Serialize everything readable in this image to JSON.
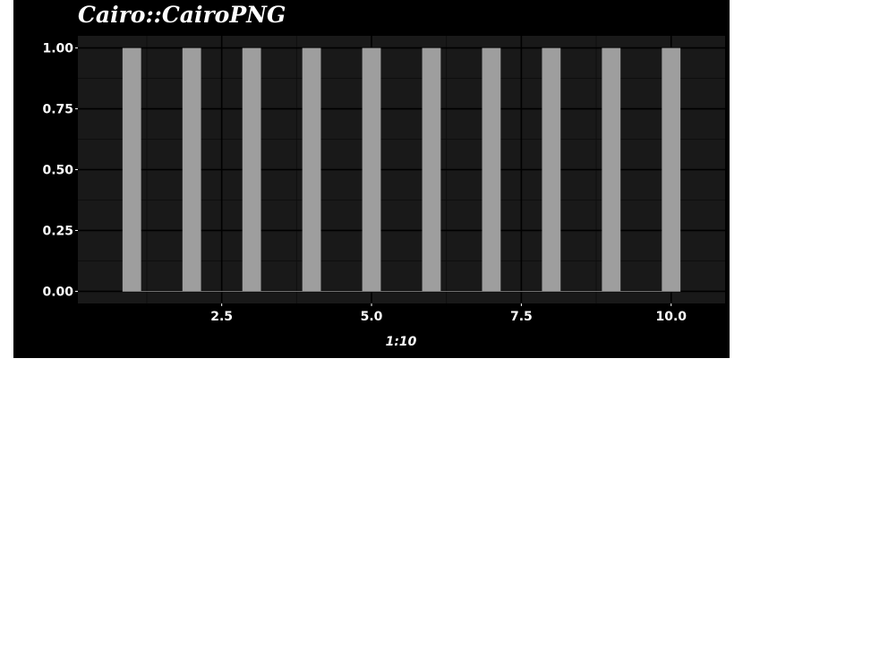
{
  "chart_data": {
    "type": "bar",
    "title": "Cairo::CairoPNG",
    "xlabel": "1:10",
    "ylabel": "",
    "x": [
      1,
      2,
      3,
      4,
      5,
      6,
      7,
      8,
      9,
      10
    ],
    "values": [
      1,
      1,
      1,
      1,
      1,
      1,
      1,
      1,
      1,
      1
    ],
    "xlim": [
      0.1,
      10.9
    ],
    "ylim": [
      -0.05,
      1.05
    ],
    "x_ticks": [
      2.5,
      5.0,
      7.5,
      10.0
    ],
    "x_tick_labels": [
      "2.5",
      "5.0",
      "7.5",
      "10.0"
    ],
    "y_ticks": [
      0,
      0.25,
      0.5,
      0.75,
      1.0
    ],
    "y_tick_labels": [
      "0.00",
      "0.25",
      "0.50",
      "0.75",
      "1.00"
    ],
    "grid": true,
    "legend": "none",
    "colors": {
      "figure_background": "#000000",
      "panel_background": "#191919",
      "grid_major": "#000000",
      "grid_minor": "#0d0d0d",
      "bar_fill": "#9e9e9e",
      "bar_outline": "#ffffff",
      "text": "#ffffff"
    }
  }
}
